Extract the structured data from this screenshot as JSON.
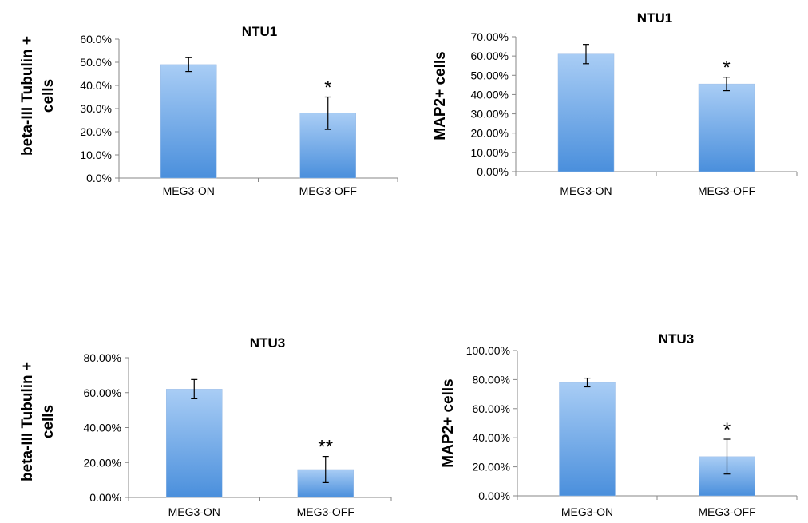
{
  "chart_data": [
    {
      "type": "bar",
      "title": "NTU1",
      "ylabel": "beta-III Tubulin + cells",
      "ylabel_lines": [
        "beta-III Tubulin +",
        "cells"
      ],
      "categories": [
        "MEG3-ON",
        "MEG3-OFF"
      ],
      "values": [
        49.0,
        28.0
      ],
      "errors": [
        3.0,
        7.0
      ],
      "significance": [
        "",
        "*"
      ],
      "ylim": [
        0,
        60
      ],
      "yticks": [
        0,
        10,
        20,
        30,
        40,
        50,
        60
      ],
      "ytick_labels": [
        "0.0%",
        "10.0%",
        "20.0%",
        "30.0%",
        "40.0%",
        "50.0%",
        "60.0%"
      ],
      "grid": false,
      "legend": false
    },
    {
      "type": "bar",
      "title": "NTU1",
      "ylabel": "MAP2+ cells",
      "ylabel_lines": [
        "MAP2+ cells"
      ],
      "categories": [
        "MEG3-ON",
        "MEG3-OFF"
      ],
      "values": [
        61.0,
        45.5
      ],
      "errors": [
        5.0,
        3.5
      ],
      "significance": [
        "",
        "*"
      ],
      "ylim": [
        0,
        70
      ],
      "yticks": [
        0,
        10,
        20,
        30,
        40,
        50,
        60,
        70
      ],
      "ytick_labels": [
        "0.00%",
        "10.00%",
        "20.00%",
        "30.00%",
        "40.00%",
        "50.00%",
        "60.00%",
        "70.00%"
      ],
      "grid": false,
      "legend": false
    },
    {
      "type": "bar",
      "title": "NTU3",
      "ylabel": "beta-III Tubulin + cells",
      "ylabel_lines": [
        "beta-III Tubulin +",
        "cells"
      ],
      "categories": [
        "MEG3-ON",
        "MEG3-OFF"
      ],
      "values": [
        62.0,
        16.0
      ],
      "errors": [
        5.5,
        7.5
      ],
      "significance": [
        "",
        "**"
      ],
      "ylim": [
        0,
        80
      ],
      "yticks": [
        0,
        20,
        40,
        60,
        80
      ],
      "ytick_labels": [
        "0.00%",
        "20.00%",
        "40.00%",
        "60.00%",
        "80.00%"
      ],
      "grid": false,
      "legend": false
    },
    {
      "type": "bar",
      "title": "NTU3",
      "ylabel": "MAP2+ cells",
      "ylabel_lines": [
        "MAP2+ cells"
      ],
      "categories": [
        "MEG3-ON",
        "MEG3-OFF"
      ],
      "values": [
        78.0,
        27.0
      ],
      "errors": [
        3.0,
        12.0
      ],
      "significance": [
        "",
        "*"
      ],
      "ylim": [
        0,
        100
      ],
      "yticks": [
        0,
        20,
        40,
        60,
        80,
        100
      ],
      "ytick_labels": [
        "0.00%",
        "20.00%",
        "40.00%",
        "60.00%",
        "80.00%",
        "100.00%"
      ],
      "grid": false,
      "legend": false
    }
  ],
  "colors": {
    "bar_top": "#a9cdf5",
    "bar_bottom": "#4a8fdc",
    "axis": "#878787",
    "text": "#000000"
  }
}
